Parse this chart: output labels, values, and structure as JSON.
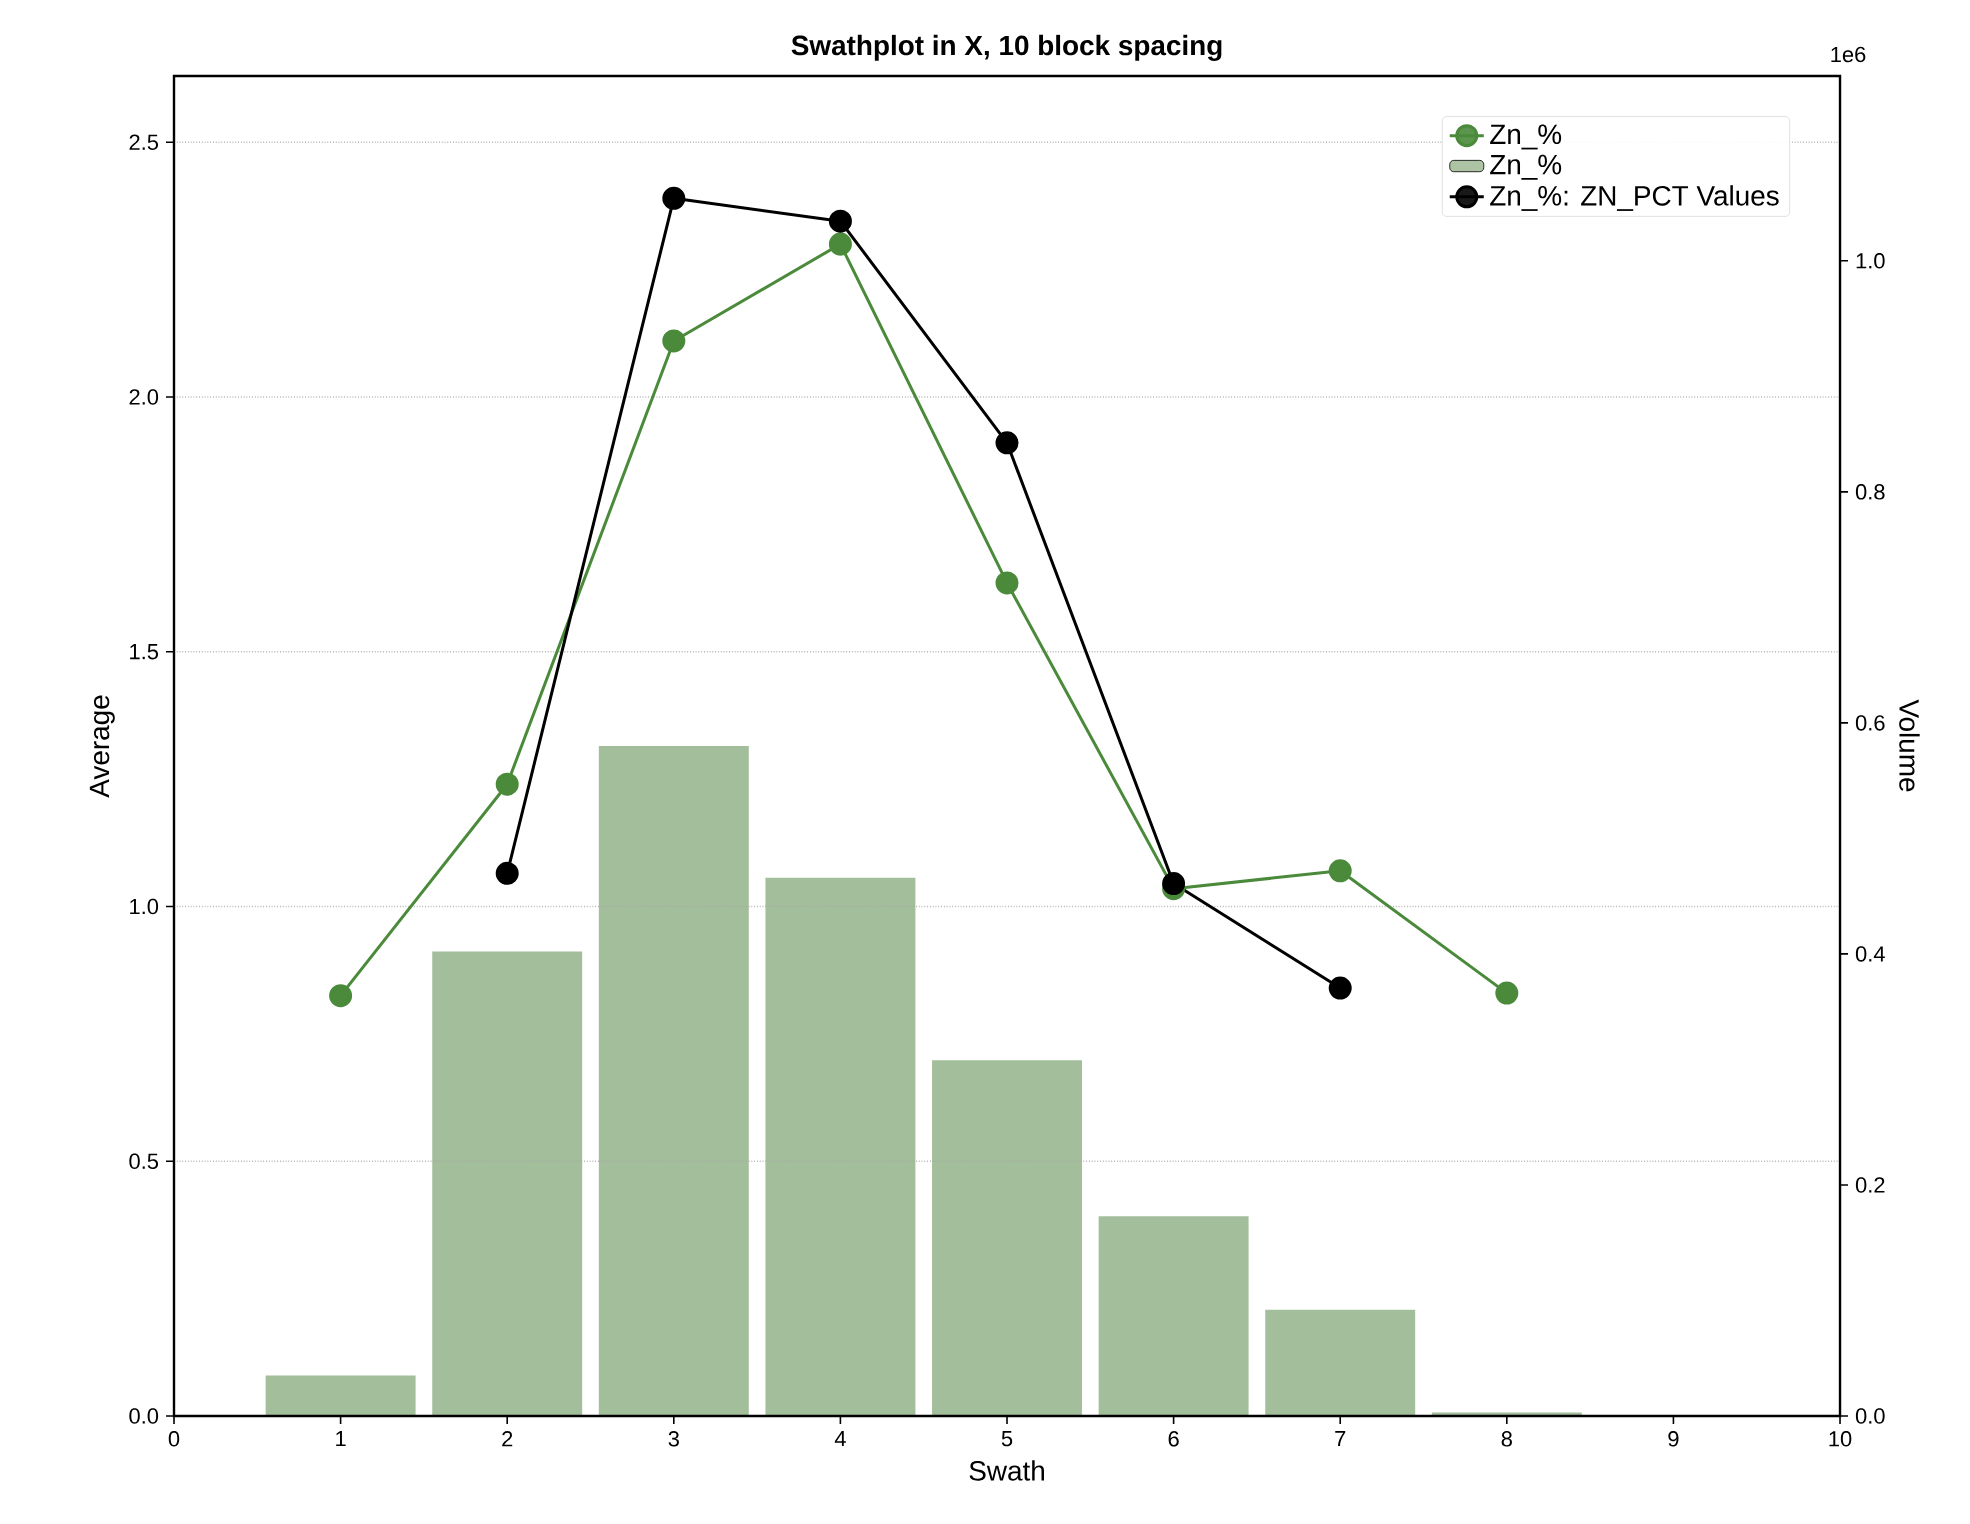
{
  "chart_data": {
    "type": "line",
    "title": "Swathplot in X, 10 block spacing",
    "xlabel": "Swath",
    "ylabel": "Average",
    "y2label": "Volume",
    "annotations": [
      "1e6"
    ],
    "x": [
      1,
      2,
      3,
      4,
      5,
      6,
      7,
      8
    ],
    "xlim": [
      0,
      10
    ],
    "xticks": [
      0,
      1,
      2,
      3,
      4,
      5,
      6,
      7,
      8,
      9,
      10
    ],
    "ylim": [
      0,
      2.63
    ],
    "yticks": [
      {
        "value": 0,
        "label": "0.0"
      },
      {
        "value": 0.5,
        "label": "0.5"
      },
      {
        "value": 1,
        "label": "1.0"
      },
      {
        "value": 1.5,
        "label": "1.5"
      },
      {
        "value": 2,
        "label": "2.0"
      },
      {
        "value": 2.5,
        "label": "2.5"
      }
    ],
    "y2lim": [
      0,
      1.16
    ],
    "y2ticks": [
      {
        "value": 0,
        "label": "0.0"
      },
      {
        "value": 0.2,
        "label": "0.2"
      },
      {
        "value": 0.4,
        "label": "0.4"
      },
      {
        "value": 0.6,
        "label": "0.6"
      },
      {
        "value": 0.8,
        "label": "0.8"
      },
      {
        "value": 1,
        "label": "1.0"
      }
    ],
    "grid": "y",
    "legend": "top right",
    "marker": "circle",
    "series": [
      {
        "name": "Zn_%",
        "color": "#4a8a3a",
        "values": [
          0.825,
          1.24,
          2.11,
          2.3,
          1.635,
          1.035,
          1.07,
          0.83
        ]
      },
      {
        "name": "Zn_%",
        "type": "bar",
        "axis": "y2",
        "color": "#a3be9a",
        "values": [
          0.035,
          0.402,
          0.58,
          0.466,
          0.308,
          0.173,
          0.092,
          0.003
        ]
      },
      {
        "name": "Zn_%: ZN_PCT Values",
        "color": "#000000",
        "x": [
          2,
          3,
          4,
          5,
          6,
          7
        ],
        "values": [
          1.065,
          2.39,
          2.345,
          1.91,
          1.045,
          0.84
        ]
      }
    ]
  }
}
